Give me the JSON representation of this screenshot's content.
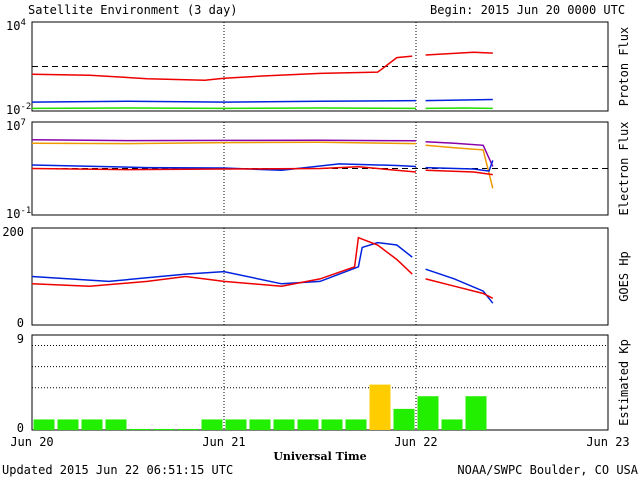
{
  "header": {
    "title": "Satellite Environment (3 day)",
    "begin": "Begin:  2015 Jun 20 0000 UTC"
  },
  "footer": {
    "updated": "Updated 2015 Jun 22 06:51:15 UTC",
    "credit": "NOAA/SWPC Boulder, CO USA"
  },
  "chart_data": [
    {
      "type": "line",
      "ylabel": "Proton Flux",
      "yscale": "log",
      "ylim_exp": [
        -2,
        4
      ],
      "ytick_exponents": [
        -2,
        4
      ],
      "xlim": [
        "Jun 20",
        "Jun 23"
      ],
      "reference_line": 10,
      "series": [
        {
          "color": "#ee0000",
          "x_days": [
            0,
            0.3,
            0.6,
            0.9,
            1.0,
            1.2,
            1.5,
            1.8,
            1.83,
            1.9,
            1.98
          ],
          "values": [
            3,
            2.6,
            1.5,
            1.2,
            1.6,
            2.3,
            3.4,
            4.2,
            8.0,
            40,
            50
          ]
        },
        {
          "color": "#ee0000",
          "x_days": [
            2.05,
            2.3,
            2.4
          ],
          "values": [
            60,
            90,
            80
          ]
        },
        {
          "color": "#0022dd",
          "x_days": [
            0,
            0.5,
            1.0,
            1.5,
            2.0
          ],
          "values": [
            0.04,
            0.045,
            0.04,
            0.045,
            0.05
          ]
        },
        {
          "color": "#0022dd",
          "x_days": [
            2.05,
            2.25,
            2.4
          ],
          "values": [
            0.05,
            0.055,
            0.06
          ]
        },
        {
          "color": "#22dd00",
          "x_days": [
            0,
            0.5,
            1.0,
            1.5,
            2.0
          ],
          "values": [
            0.015,
            0.016,
            0.015,
            0.016,
            0.015
          ]
        },
        {
          "color": "#22dd00",
          "x_days": [
            2.05,
            2.25,
            2.4
          ],
          "values": [
            0.015,
            0.016,
            0.015
          ]
        }
      ]
    },
    {
      "type": "line",
      "ylabel": "Electron Flux",
      "yscale": "log",
      "ylim_exp": [
        -1,
        7
      ],
      "ytick_exponents": [
        -1,
        7
      ],
      "xlim": [
        "Jun 20",
        "Jun 23"
      ],
      "reference_line": 1000,
      "series": [
        {
          "color": "#8800aa",
          "x_days": [
            0,
            0.5,
            1.0,
            1.5,
            2.0
          ],
          "values": [
            300000,
            250000,
            260000,
            270000,
            240000
          ]
        },
        {
          "color": "#8800aa",
          "x_days": [
            2.05,
            2.2,
            2.35,
            2.4
          ],
          "values": [
            200000,
            150000,
            100000,
            1500
          ]
        },
        {
          "color": "#ee9900",
          "x_days": [
            0,
            0.5,
            1.0,
            1.5,
            2.0
          ],
          "values": [
            150000,
            140000,
            170000,
            180000,
            140000
          ]
        },
        {
          "color": "#ee9900",
          "x_days": [
            2.05,
            2.2,
            2.35,
            2.4
          ],
          "values": [
            100000,
            60000,
            40000,
            20
          ]
        },
        {
          "color": "#0022dd",
          "x_days": [
            0,
            0.6,
            1.0,
            1.3,
            1.6,
            1.9,
            2.0
          ],
          "values": [
            2000,
            1200,
            1100,
            700,
            2500,
            1800,
            1500
          ]
        },
        {
          "color": "#0022dd",
          "x_days": [
            2.05,
            2.3,
            2.38,
            2.4
          ],
          "values": [
            1200,
            900,
            600,
            5000
          ]
        },
        {
          "color": "#ee0000",
          "x_days": [
            0,
            0.5,
            1.0,
            1.5,
            1.7,
            2.0
          ],
          "values": [
            1000,
            800,
            900,
            1000,
            1400,
            500
          ]
        },
        {
          "color": "#ee0000",
          "x_days": [
            2.05,
            2.3,
            2.4
          ],
          "values": [
            700,
            500,
            300
          ]
        }
      ]
    },
    {
      "type": "line",
      "ylabel": "GOES Hp",
      "ylim": [
        0,
        200
      ],
      "yticks": [
        0,
        200
      ],
      "xlim": [
        "Jun 20",
        "Jun 23"
      ],
      "series": [
        {
          "color": "#0022dd",
          "x_days": [
            0,
            0.4,
            0.8,
            1.0,
            1.3,
            1.5,
            1.7,
            1.72,
            1.8,
            1.9,
            1.98
          ],
          "values": [
            100,
            90,
            105,
            110,
            85,
            90,
            120,
            160,
            170,
            165,
            140
          ]
        },
        {
          "color": "#0022dd",
          "x_days": [
            2.05,
            2.2,
            2.35,
            2.4
          ],
          "values": [
            115,
            95,
            70,
            45
          ]
        },
        {
          "color": "#ee0000",
          "x_days": [
            0,
            0.3,
            0.6,
            0.8,
            1.0,
            1.3,
            1.5,
            1.68,
            1.7,
            1.8,
            1.9,
            1.98
          ],
          "values": [
            85,
            80,
            90,
            100,
            90,
            80,
            95,
            120,
            180,
            165,
            135,
            105
          ]
        },
        {
          "color": "#ee0000",
          "x_days": [
            2.05,
            2.2,
            2.35,
            2.4
          ],
          "values": [
            95,
            80,
            65,
            55
          ]
        }
      ]
    },
    {
      "type": "bar",
      "ylabel": "Estimated Kp",
      "ylim": [
        0,
        9
      ],
      "yticks": [
        0,
        9
      ],
      "xlim": [
        "Jun 20",
        "Jun 23"
      ],
      "bar_colors": {
        "green": "#22ee00",
        "yellow": "#ffcc00"
      },
      "bars": [
        {
          "x_days": 0.0625,
          "value": 1,
          "color": "green"
        },
        {
          "x_days": 0.1875,
          "value": 1,
          "color": "green"
        },
        {
          "x_days": 0.3125,
          "value": 1,
          "color": "green"
        },
        {
          "x_days": 0.4375,
          "value": 1,
          "color": "green"
        },
        {
          "x_days": 0.5625,
          "value": 0.1,
          "color": "green"
        },
        {
          "x_days": 0.6875,
          "value": 0.1,
          "color": "green"
        },
        {
          "x_days": 0.8125,
          "value": 0.1,
          "color": "green"
        },
        {
          "x_days": 0.9375,
          "value": 1,
          "color": "green"
        },
        {
          "x_days": 1.0625,
          "value": 1,
          "color": "green"
        },
        {
          "x_days": 1.1875,
          "value": 1,
          "color": "green"
        },
        {
          "x_days": 1.3125,
          "value": 1,
          "color": "green"
        },
        {
          "x_days": 1.4375,
          "value": 1,
          "color": "green"
        },
        {
          "x_days": 1.5625,
          "value": 1,
          "color": "green"
        },
        {
          "x_days": 1.6875,
          "value": 1,
          "color": "green"
        },
        {
          "x_days": 1.8125,
          "value": 4.3,
          "color": "yellow"
        },
        {
          "x_days": 1.9375,
          "value": 2,
          "color": "green"
        },
        {
          "x_days": 2.0625,
          "value": 3.2,
          "color": "green"
        },
        {
          "x_days": 2.1875,
          "value": 1,
          "color": "green"
        },
        {
          "x_days": 2.3125,
          "value": 3.2,
          "color": "green"
        }
      ],
      "dotted_levels": [
        4,
        6,
        8
      ]
    }
  ],
  "x_axis": {
    "label": "Universal Time",
    "ticks": [
      "Jun 20",
      "Jun 21",
      "Jun 22",
      "Jun 23"
    ],
    "day_markers": [
      1,
      2
    ]
  }
}
